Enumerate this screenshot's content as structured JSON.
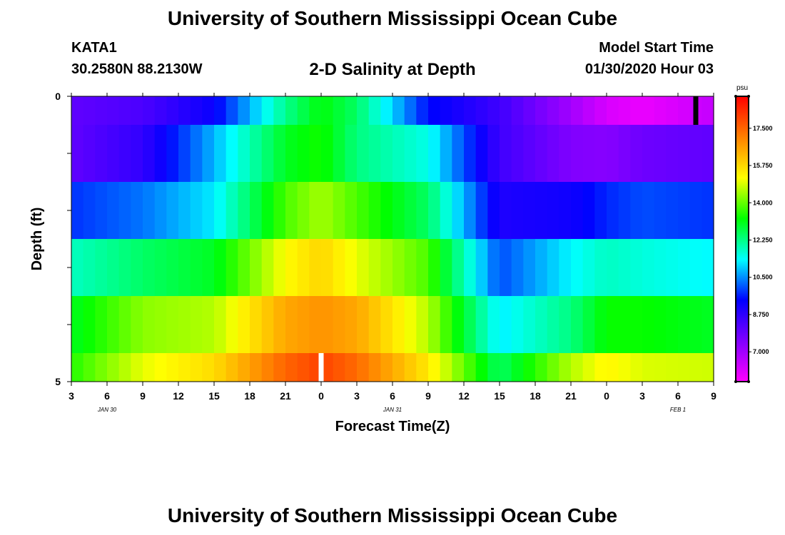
{
  "header": {
    "title": "University of Southern Mississippi Ocean Cube",
    "station": "KATA1",
    "coordinates": "30.2580N 88.2130W",
    "chart_title": "2-D Salinity at Depth",
    "model_start_label": "Model Start Time",
    "model_start_value": "01/30/2020 Hour 03"
  },
  "footer": {
    "title": "University of Southern Mississippi Ocean Cube"
  },
  "chart_data": {
    "type": "heatmap",
    "title": "2-D Salinity at Depth",
    "xlabel": "Forecast Time(Z)",
    "ylabel": "Depth (ft)",
    "x_tick_labels": [
      "3",
      "6",
      "9",
      "12",
      "15",
      "18",
      "21",
      "0",
      "3",
      "6",
      "9",
      "12",
      "15",
      "18",
      "21",
      "0",
      "3",
      "6",
      "9"
    ],
    "date_labels": [
      {
        "text": "JAN 30",
        "tick_index": 1
      },
      {
        "text": "JAN 31",
        "tick_index": 9
      },
      {
        "text": "FEB 1",
        "tick_index": 17
      }
    ],
    "y_tick_labels": [
      {
        "text": "0",
        "depth": 0
      },
      {
        "text": "5",
        "depth": 5
      }
    ],
    "y_range": [
      0,
      5
    ],
    "colorbar": {
      "unit": "psu",
      "ticks": [
        "17.500",
        "15.750",
        "14.000",
        "12.250",
        "10.500",
        "8.750",
        "7.000"
      ],
      "tick_values": [
        17.5,
        15.75,
        14.0,
        12.25,
        10.5,
        8.75,
        7.0
      ],
      "range": [
        5.6,
        19.0
      ],
      "colors": [
        "#ff00ff",
        "#8000ff",
        "#0000ff",
        "#00ffff",
        "#00ff00",
        "#ffff00",
        "#ff8000",
        "#ff0000"
      ]
    },
    "hours_from_start": [
      0,
      6,
      12,
      18,
      21,
      24,
      30,
      36,
      42,
      45,
      48,
      54
    ],
    "layers": [
      {
        "depth_top": 0.0,
        "depth_bottom": 0.5,
        "values": [
          8.0,
          8.3,
          9.3,
          12.2,
          13.2,
          12.5,
          9.5,
          8.5,
          7.0,
          6.2,
          5.9,
          6.5
        ]
      },
      {
        "depth_top": 0.5,
        "depth_bottom": 1.5,
        "values": [
          8.0,
          8.7,
          10.8,
          13.0,
          13.4,
          12.3,
          11.5,
          8.5,
          7.5,
          7.4,
          7.8,
          8.0
        ]
      },
      {
        "depth_top": 1.5,
        "depth_bottom": 2.5,
        "values": [
          9.8,
          10.3,
          11.2,
          13.8,
          14.5,
          13.8,
          12.5,
          9.0,
          9.2,
          9.7,
          10.0,
          9.8
        ]
      },
      {
        "depth_top": 2.5,
        "depth_bottom": 3.5,
        "values": [
          11.8,
          12.5,
          13.0,
          15.2,
          15.8,
          15.0,
          13.8,
          10.0,
          11.3,
          11.8,
          11.6,
          11.3
        ]
      },
      {
        "depth_top": 3.5,
        "depth_bottom": 4.5,
        "values": [
          13.0,
          14.3,
          14.6,
          16.5,
          16.8,
          16.5,
          14.6,
          11.2,
          12.3,
          13.3,
          13.3,
          13.0
        ]
      },
      {
        "depth_top": 4.5,
        "depth_bottom": 5.0,
        "values": [
          13.5,
          15.0,
          15.7,
          17.5,
          18.0,
          17.4,
          15.5,
          12.5,
          14.6,
          15.3,
          14.9,
          14.8
        ]
      }
    ],
    "markers": [
      {
        "hours": 21,
        "depth_top": 4.5,
        "depth_bottom": 5.0,
        "color": "#ffffff"
      },
      {
        "hours": 52.5,
        "depth_top": 0.0,
        "depth_bottom": 0.5,
        "color": "#000000"
      }
    ]
  }
}
